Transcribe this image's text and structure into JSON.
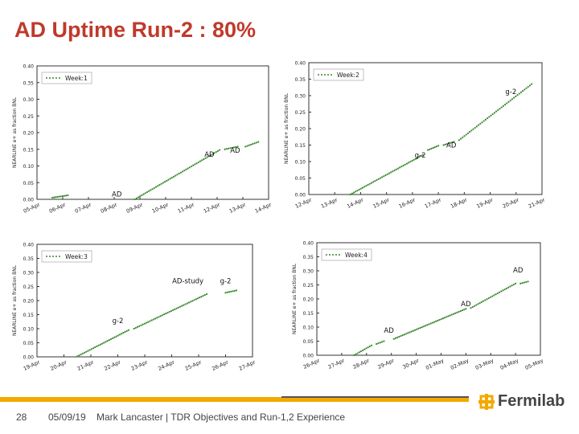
{
  "slide": {
    "title": "AD Uptime Run-2 : 80%",
    "page_number": "28",
    "date": "05/09/19",
    "footer_text": "Mark Lancaster | TDR Objectives and Run-1,2 Experience",
    "logo_text": "Fermilab",
    "accent_color": "#f2a900",
    "title_color": "#c0392b"
  },
  "chart_data": [
    {
      "type": "scatter",
      "legend": "Week:1",
      "legend_position": "top-left",
      "ylabel": "NEARLINE e+ as fraction BNL",
      "ylim": [
        0,
        0.4
      ],
      "yticks": [
        "0.00",
        "0.05",
        "0.10",
        "0.15",
        "0.20",
        "0.25",
        "0.30",
        "0.35",
        "0.40"
      ],
      "xticks": [
        "05-Apr",
        "06-Apr",
        "07-Apr",
        "08-Apr",
        "09-Apr",
        "10-Apr",
        "11-Apr",
        "12-Apr",
        "13-Apr",
        "14-Apr"
      ],
      "xlim": [
        0,
        9
      ],
      "color": "#3a8a2e",
      "segments": [
        {
          "x": [
            0.6,
            1.2
          ],
          "y": [
            0.005,
            0.012
          ]
        },
        {
          "x": [
            3.8,
            7.1
          ],
          "y": [
            0.0,
            0.148
          ]
        },
        {
          "x": [
            7.3,
            7.8
          ],
          "y": [
            0.15,
            0.158
          ]
        },
        {
          "x": [
            8.1,
            8.6
          ],
          "y": [
            0.158,
            0.172
          ]
        }
      ],
      "annotations": [
        {
          "text": "AD",
          "x": 3.1,
          "y": 0.008
        },
        {
          "text": "AD",
          "x": 6.7,
          "y": 0.128
        },
        {
          "text": "AD",
          "x": 7.7,
          "y": 0.14
        }
      ]
    },
    {
      "type": "scatter",
      "legend": "Week:2",
      "legend_position": "top-left",
      "ylabel": "NEARLINE e+ as fraction BNL",
      "ylim": [
        0,
        0.4
      ],
      "yticks": [
        "0.00",
        "0.05",
        "0.10",
        "0.15",
        "0.20",
        "0.25",
        "0.30",
        "0.35",
        "0.40"
      ],
      "xticks": [
        "12-Apr",
        "13-Apr",
        "14-Apr",
        "15-Apr",
        "16-Apr",
        "17-Apr",
        "18-Apr",
        "19-Apr",
        "20-Apr",
        "21-Apr"
      ],
      "xlim": [
        0,
        9
      ],
      "color": "#3a8a2e",
      "segments": [
        {
          "x": [
            1.6,
            4.4
          ],
          "y": [
            0.0,
            0.12
          ]
        },
        {
          "x": [
            4.6,
            5.0
          ],
          "y": [
            0.135,
            0.148
          ]
        },
        {
          "x": [
            5.2,
            5.6
          ],
          "y": [
            0.15,
            0.16
          ]
        },
        {
          "x": [
            5.8,
            8.6
          ],
          "y": [
            0.165,
            0.335
          ]
        }
      ],
      "annotations": [
        {
          "text": "g-2",
          "x": 7.8,
          "y": 0.305
        },
        {
          "text": "g-2",
          "x": 4.3,
          "y": 0.112
        },
        {
          "text": "AD",
          "x": 5.5,
          "y": 0.143
        }
      ]
    },
    {
      "type": "scatter",
      "legend": "Week:3",
      "legend_position": "top-left",
      "ylabel": "NEARLINE e+ as fraction BNL",
      "ylim": [
        0,
        0.4
      ],
      "yticks": [
        "0.00",
        "0.05",
        "0.10",
        "0.15",
        "0.20",
        "0.25",
        "0.30",
        "0.35",
        "0.40"
      ],
      "xticks": [
        "19-Apr",
        "20-Apr",
        "21-Apr",
        "22-Apr",
        "23-Apr",
        "24-Apr",
        "25-Apr",
        "26-Apr",
        "27-Apr"
      ],
      "xlim": [
        0,
        8
      ],
      "color": "#3a8a2e",
      "segments": [
        {
          "x": [
            1.5,
            3.4
          ],
          "y": [
            0.002,
            0.095
          ]
        },
        {
          "x": [
            3.6,
            6.3
          ],
          "y": [
            0.1,
            0.223
          ]
        },
        {
          "x": [
            7.0,
            7.4
          ],
          "y": [
            0.228,
            0.236
          ]
        }
      ],
      "annotations": [
        {
          "text": "AD-study",
          "x": 5.6,
          "y": 0.262
        },
        {
          "text": "g-2",
          "x": 7.0,
          "y": 0.262
        },
        {
          "text": "g-2",
          "x": 3.0,
          "y": 0.12
        }
      ]
    },
    {
      "type": "scatter",
      "legend": "Week:4",
      "legend_position": "top-left",
      "ylabel": "NEARLINE e+ as fraction BNL",
      "ylim": [
        0,
        0.4
      ],
      "yticks": [
        "0.00",
        "0.05",
        "0.10",
        "0.15",
        "0.20",
        "0.25",
        "0.30",
        "0.35",
        "0.40"
      ],
      "xticks": [
        "26-Apr",
        "27-Apr",
        "28-Apr",
        "29-Apr",
        "30-Apr",
        "01-May",
        "02-May",
        "03-May",
        "04-May",
        "05-May"
      ],
      "xlim": [
        0,
        9
      ],
      "color": "#3a8a2e",
      "segments": [
        {
          "x": [
            1.5,
            2.2
          ],
          "y": [
            0.0,
            0.035
          ]
        },
        {
          "x": [
            2.4,
            2.7
          ],
          "y": [
            0.04,
            0.05
          ]
        },
        {
          "x": [
            3.1,
            6.0
          ],
          "y": [
            0.058,
            0.165
          ]
        },
        {
          "x": [
            6.2,
            8.0
          ],
          "y": [
            0.168,
            0.255
          ]
        },
        {
          "x": [
            8.2,
            8.5
          ],
          "y": [
            0.255,
            0.262
          ]
        }
      ],
      "annotations": [
        {
          "text": "AD",
          "x": 8.1,
          "y": 0.295
        },
        {
          "text": "AD",
          "x": 6.0,
          "y": 0.175
        },
        {
          "text": "AD",
          "x": 2.9,
          "y": 0.08
        }
      ]
    }
  ]
}
